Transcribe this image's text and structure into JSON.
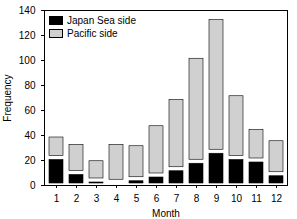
{
  "chart_data": {
    "type": "bar",
    "stacked": true,
    "x_label": "Month",
    "y_label": "Frequency",
    "categories": [
      "1",
      "2",
      "3",
      "4",
      "5",
      "6",
      "7",
      "8",
      "9",
      "10",
      "11",
      "12"
    ],
    "series": [
      {
        "name": "Japan Sea side",
        "color": "#000000",
        "values": [
          22,
          10,
          4,
          3,
          5,
          8,
          13,
          19,
          27,
          22,
          20,
          9
        ]
      },
      {
        "name": "Pacific side",
        "color": "#d0d0d0",
        "values": [
          18,
          24,
          17,
          31,
          28,
          41,
          57,
          84,
          107,
          51,
          26,
          28
        ]
      }
    ],
    "ylim": [
      0,
      140
    ],
    "yticks": [
      0,
      20,
      40,
      60,
      80,
      100,
      120,
      140
    ],
    "legend": "top-left"
  }
}
